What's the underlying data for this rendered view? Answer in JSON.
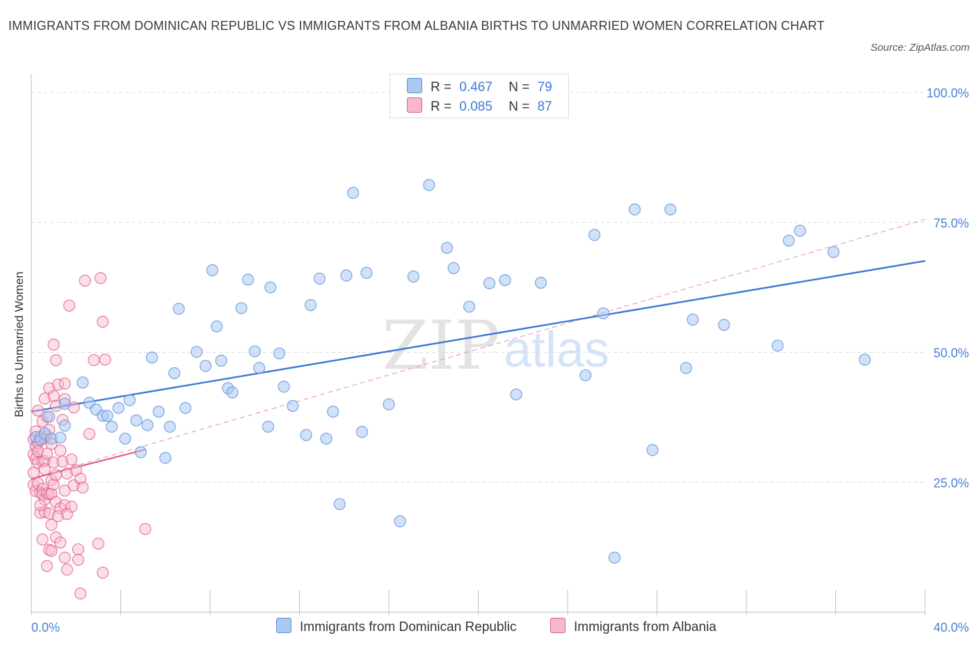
{
  "title": "IMMIGRANTS FROM DOMINICAN REPUBLIC VS IMMIGRANTS FROM ALBANIA BIRTHS TO UNMARRIED WOMEN CORRELATION CHART",
  "source": "Source: ZipAtlas.com",
  "watermark": {
    "zip": "ZIP",
    "atlas": "atlas"
  },
  "legend": {
    "rows": [
      {
        "r_label": "R =",
        "r_value": "0.467",
        "n_label": "N =",
        "n_value": "79",
        "color": "#aac8f2"
      },
      {
        "r_label": "R =",
        "r_value": "0.085",
        "n_label": "N =",
        "n_value": "87",
        "color": "#f6b9cc"
      }
    ]
  },
  "chart_data": {
    "type": "scatter",
    "title": "IMMIGRANTS FROM DOMINICAN REPUBLIC VS IMMIGRANTS FROM ALBANIA BIRTHS TO UNMARRIED WOMEN CORRELATION CHART",
    "xlabel": "",
    "ylabel": "Births to Unmarried Women",
    "xlim": [
      0,
      40
    ],
    "ylim": [
      0,
      100
    ],
    "x_tick_labels": [
      "0.0%",
      "40.0%"
    ],
    "y_tick_labels": [
      "100.0%",
      "75.0%",
      "50.0%",
      "25.0%"
    ],
    "y_ticks": [
      100,
      75,
      50,
      25
    ],
    "grid": true,
    "legend_position": "bottom",
    "series": [
      {
        "name": "Immigrants from Dominican Republic",
        "color": "#5b8fd9",
        "fill": "#aac8f2",
        "trend": {
          "x": [
            0,
            40
          ],
          "y": [
            38.6,
            67.6
          ],
          "style": "solid"
        },
        "points": [
          [
            0.2,
            33.7
          ],
          [
            0.4,
            33.2
          ],
          [
            0.6,
            34.4
          ],
          [
            0.9,
            33.4
          ],
          [
            1.3,
            33.6
          ],
          [
            0.8,
            37.6
          ],
          [
            1.5,
            35.9
          ],
          [
            1.5,
            40.1
          ],
          [
            2.3,
            44.2
          ],
          [
            2.6,
            40.3
          ],
          [
            2.9,
            39.0
          ],
          [
            3.2,
            37.8
          ],
          [
            3.4,
            37.8
          ],
          [
            3.6,
            35.7
          ],
          [
            3.9,
            39.3
          ],
          [
            4.2,
            33.4
          ],
          [
            4.4,
            40.8
          ],
          [
            4.7,
            36.9
          ],
          [
            4.9,
            30.8
          ],
          [
            5.2,
            36.0
          ],
          [
            5.4,
            49.0
          ],
          [
            5.7,
            38.6
          ],
          [
            6.0,
            29.7
          ],
          [
            6.2,
            35.7
          ],
          [
            6.4,
            46.0
          ],
          [
            6.6,
            58.4
          ],
          [
            6.9,
            39.3
          ],
          [
            7.4,
            50.1
          ],
          [
            7.8,
            47.4
          ],
          [
            8.1,
            65.8
          ],
          [
            8.3,
            55.0
          ],
          [
            8.5,
            48.4
          ],
          [
            8.8,
            43.1
          ],
          [
            9.0,
            42.3
          ],
          [
            9.4,
            58.5
          ],
          [
            9.7,
            64.0
          ],
          [
            10.0,
            50.2
          ],
          [
            10.2,
            47.0
          ],
          [
            10.7,
            62.5
          ],
          [
            10.6,
            35.7
          ],
          [
            11.1,
            49.8
          ],
          [
            11.3,
            43.4
          ],
          [
            11.7,
            39.7
          ],
          [
            12.3,
            34.1
          ],
          [
            12.5,
            59.1
          ],
          [
            12.9,
            64.2
          ],
          [
            13.2,
            33.4
          ],
          [
            13.5,
            38.6
          ],
          [
            13.8,
            20.8
          ],
          [
            14.1,
            64.8
          ],
          [
            14.4,
            80.7
          ],
          [
            14.8,
            34.7
          ],
          [
            15.0,
            65.3
          ],
          [
            16.0,
            40.0
          ],
          [
            16.5,
            17.5
          ],
          [
            17.1,
            64.6
          ],
          [
            17.8,
            82.2
          ],
          [
            18.6,
            70.1
          ],
          [
            18.9,
            66.2
          ],
          [
            19.6,
            58.8
          ],
          [
            20.5,
            63.3
          ],
          [
            21.2,
            63.9
          ],
          [
            21.7,
            41.9
          ],
          [
            22.8,
            63.4
          ],
          [
            24.8,
            45.6
          ],
          [
            25.2,
            72.6
          ],
          [
            25.6,
            57.5
          ],
          [
            26.1,
            10.5
          ],
          [
            27.0,
            77.5
          ],
          [
            27.8,
            31.2
          ],
          [
            28.6,
            77.5
          ],
          [
            29.3,
            47.0
          ],
          [
            29.6,
            56.3
          ],
          [
            31.0,
            55.3
          ],
          [
            33.4,
            51.3
          ],
          [
            33.9,
            71.5
          ],
          [
            34.4,
            73.4
          ],
          [
            35.9,
            69.3
          ],
          [
            37.3,
            48.6
          ]
        ]
      },
      {
        "name": "Immigrants from Albania",
        "color": "#e05c8a",
        "fill": "#f6b9cc",
        "trend": {
          "x": [
            0,
            5.1
          ],
          "y": [
            25.7,
            31.3
          ],
          "style": "solid"
        },
        "trend_extended": {
          "x": [
            0,
            40
          ],
          "y": [
            25.7,
            75.6
          ],
          "style": "dashed"
        },
        "points": [
          [
            0.1,
            33.3
          ],
          [
            0.1,
            30.4
          ],
          [
            0.1,
            26.8
          ],
          [
            0.1,
            24.5
          ],
          [
            0.2,
            34.8
          ],
          [
            0.2,
            31.9
          ],
          [
            0.2,
            29.5
          ],
          [
            0.2,
            23.3
          ],
          [
            0.3,
            38.8
          ],
          [
            0.3,
            32.6
          ],
          [
            0.3,
            31.0
          ],
          [
            0.3,
            28.8
          ],
          [
            0.3,
            24.8
          ],
          [
            0.4,
            33.7
          ],
          [
            0.4,
            23.0
          ],
          [
            0.4,
            19.1
          ],
          [
            0.5,
            36.7
          ],
          [
            0.5,
            29.0
          ],
          [
            0.5,
            23.7
          ],
          [
            0.5,
            22.6
          ],
          [
            0.5,
            14.0
          ],
          [
            0.6,
            41.1
          ],
          [
            0.6,
            33.4
          ],
          [
            0.6,
            29.1
          ],
          [
            0.6,
            27.5
          ],
          [
            0.6,
            21.7
          ],
          [
            0.6,
            19.3
          ],
          [
            0.7,
            37.6
          ],
          [
            0.7,
            33.9
          ],
          [
            0.7,
            30.5
          ],
          [
            0.7,
            22.9
          ],
          [
            0.7,
            8.9
          ],
          [
            0.8,
            43.1
          ],
          [
            0.8,
            35.1
          ],
          [
            0.8,
            22.7
          ],
          [
            0.8,
            19.0
          ],
          [
            0.8,
            12.0
          ],
          [
            0.9,
            32.4
          ],
          [
            0.9,
            25.4
          ],
          [
            0.9,
            22.8
          ],
          [
            0.9,
            11.8
          ],
          [
            1.0,
            51.5
          ],
          [
            1.0,
            41.6
          ],
          [
            1.0,
            28.8
          ],
          [
            1.0,
            24.6
          ],
          [
            1.1,
            48.5
          ],
          [
            1.1,
            39.7
          ],
          [
            1.1,
            26.4
          ],
          [
            1.1,
            21.2
          ],
          [
            1.1,
            14.4
          ],
          [
            1.2,
            43.8
          ],
          [
            1.3,
            31.1
          ],
          [
            1.3,
            20.0
          ],
          [
            1.3,
            13.4
          ],
          [
            1.4,
            37.0
          ],
          [
            1.4,
            29.0
          ],
          [
            1.5,
            44.0
          ],
          [
            1.5,
            41.0
          ],
          [
            1.5,
            23.4
          ],
          [
            1.5,
            20.6
          ],
          [
            1.6,
            26.7
          ],
          [
            1.6,
            8.2
          ],
          [
            1.7,
            59.0
          ],
          [
            1.8,
            29.4
          ],
          [
            1.8,
            20.3
          ],
          [
            1.9,
            39.4
          ],
          [
            1.9,
            24.4
          ],
          [
            2.0,
            27.3
          ],
          [
            2.1,
            10.1
          ],
          [
            2.1,
            12.1
          ],
          [
            2.2,
            25.7
          ],
          [
            2.2,
            3.6
          ],
          [
            2.4,
            63.8
          ],
          [
            2.6,
            34.3
          ],
          [
            2.8,
            48.5
          ],
          [
            3.0,
            13.2
          ],
          [
            3.1,
            64.3
          ],
          [
            3.2,
            55.9
          ],
          [
            3.3,
            48.6
          ],
          [
            3.2,
            7.6
          ],
          [
            5.1,
            16.0
          ],
          [
            1.2,
            18.5
          ],
          [
            0.9,
            16.8
          ],
          [
            1.6,
            18.9
          ],
          [
            2.3,
            24.0
          ],
          [
            0.4,
            20.6
          ],
          [
            1.5,
            10.5
          ]
        ]
      }
    ]
  },
  "bottom_legend": {
    "items": [
      {
        "label": "Immigrants from Dominican Republic",
        "color": "#aac8f2",
        "border": "#5b8fd9"
      },
      {
        "label": "Immigrants from Albania",
        "color": "#f6b9cc",
        "border": "#e05c8a"
      }
    ]
  }
}
